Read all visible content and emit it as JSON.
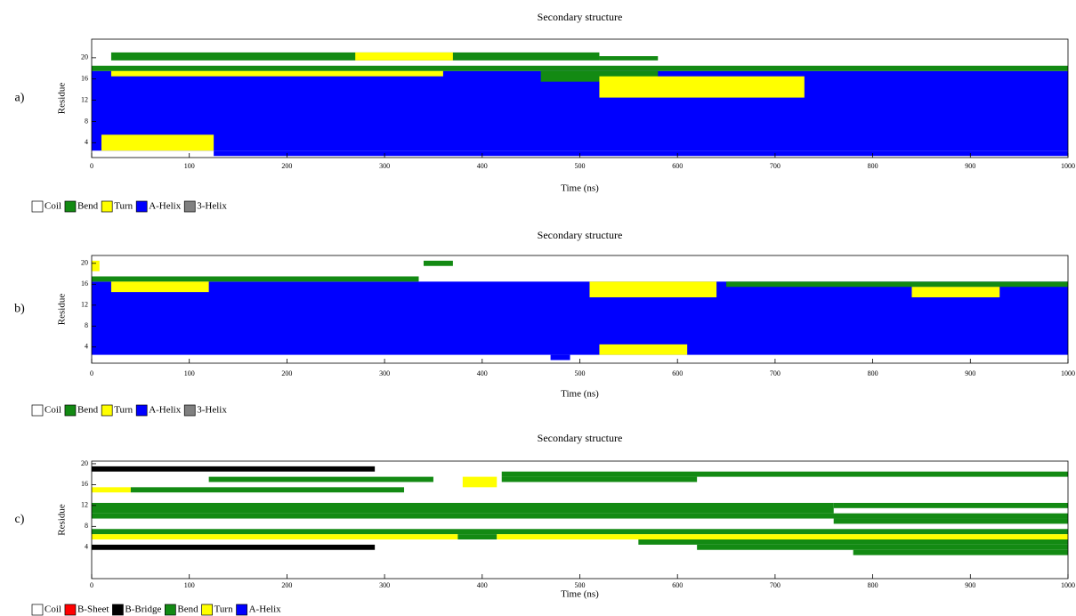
{
  "chart_data": [
    {
      "type": "dssp",
      "panel_label": "a)",
      "title": "Secondary structure",
      "x_label": "Time (ns)",
      "y_label": "Residue",
      "xlim": [
        0,
        1000
      ],
      "xticks": [
        0,
        100,
        200,
        300,
        400,
        500,
        600,
        700,
        800,
        900,
        1000
      ],
      "ylim": [
        1.2,
        23.5
      ],
      "yticks": [
        4,
        8,
        12,
        16,
        20
      ],
      "legend": [
        {
          "name": "Coil",
          "color": "#ffffff"
        },
        {
          "name": "Bend",
          "color": "#138a13"
        },
        {
          "name": "Turn",
          "color": "#ffff00"
        },
        {
          "name": "A-Helix",
          "color": "#0000ff"
        },
        {
          "name": "3-Helix",
          "color": "#808080"
        }
      ],
      "segments": [
        {
          "state": "A-Helix",
          "t": [
            0,
            1000
          ],
          "residues": [
            2.5,
            17.5
          ]
        },
        {
          "state": "A-Helix",
          "t": [
            125,
            1000
          ],
          "residues": [
            1.5,
            2.5
          ]
        },
        {
          "state": "Turn",
          "t": [
            10,
            125
          ],
          "residues": [
            2.5,
            5.5
          ]
        },
        {
          "state": "Bend",
          "t": [
            0,
            1000
          ],
          "residues": [
            17.5,
            18.5
          ]
        },
        {
          "state": "Turn",
          "t": [
            20,
            360
          ],
          "residues": [
            16.5,
            17.5
          ]
        },
        {
          "state": "Bend",
          "t": [
            460,
            580
          ],
          "residues": [
            15.5,
            17.5
          ]
        },
        {
          "state": "Turn",
          "t": [
            520,
            730
          ],
          "residues": [
            12.5,
            16.5
          ]
        },
        {
          "state": "Bend",
          "t": [
            20,
            520
          ],
          "residues": [
            19.5,
            21
          ]
        },
        {
          "state": "Turn",
          "t": [
            270,
            370
          ],
          "residues": [
            19.5,
            21
          ]
        },
        {
          "state": "Bend",
          "t": [
            520,
            580
          ],
          "residues": [
            19.5,
            20.3
          ]
        }
      ]
    },
    {
      "type": "dssp",
      "panel_label": "b)",
      "title": "Secondary structure",
      "x_label": "Time (ns)",
      "y_label": "Residue",
      "xlim": [
        0,
        1000
      ],
      "xticks": [
        0,
        100,
        200,
        300,
        400,
        500,
        600,
        700,
        800,
        900,
        1000
      ],
      "ylim": [
        0.9,
        21.5
      ],
      "yticks": [
        4,
        8,
        12,
        16,
        20
      ],
      "legend": [
        {
          "name": "Coil",
          "color": "#ffffff"
        },
        {
          "name": "Bend",
          "color": "#138a13"
        },
        {
          "name": "Turn",
          "color": "#ffff00"
        },
        {
          "name": "A-Helix",
          "color": "#0000ff"
        },
        {
          "name": "3-Helix",
          "color": "#808080"
        }
      ],
      "segments": [
        {
          "state": "A-Helix",
          "t": [
            0,
            1000
          ],
          "residues": [
            2.5,
            16.5
          ]
        },
        {
          "state": "Bend",
          "t": [
            0,
            335
          ],
          "residues": [
            16.5,
            17.5
          ]
        },
        {
          "state": "Bend",
          "t": [
            650,
            1000
          ],
          "residues": [
            15.5,
            16.5
          ]
        },
        {
          "state": "Turn",
          "t": [
            20,
            120
          ],
          "residues": [
            14.5,
            16.5
          ]
        },
        {
          "state": "Turn",
          "t": [
            510,
            640
          ],
          "residues": [
            13.5,
            16.5
          ]
        },
        {
          "state": "Turn",
          "t": [
            840,
            930
          ],
          "residues": [
            13.5,
            15.5
          ]
        },
        {
          "state": "Turn",
          "t": [
            520,
            610
          ],
          "residues": [
            2.5,
            4.5
          ]
        },
        {
          "state": "Turn",
          "t": [
            0,
            8
          ],
          "residues": [
            18.5,
            20.5
          ]
        },
        {
          "state": "Bend",
          "t": [
            340,
            370
          ],
          "residues": [
            19.5,
            20.5
          ]
        },
        {
          "state": "A-Helix",
          "t": [
            470,
            490
          ],
          "residues": [
            1.5,
            2.5
          ]
        }
      ]
    },
    {
      "type": "dssp",
      "panel_label": "c)",
      "title": "Secondary structure",
      "x_label": "Time (ns)",
      "y_label": "Residue",
      "xlim": [
        0,
        1000
      ],
      "xticks": [
        0,
        100,
        200,
        300,
        400,
        500,
        600,
        700,
        800,
        900,
        1000
      ],
      "ylim": [
        -2,
        20.5
      ],
      "yticks": [
        4,
        8,
        12,
        16,
        20
      ],
      "legend": [
        {
          "name": "Coil",
          "color": "#ffffff"
        },
        {
          "name": "B-Sheet",
          "color": "#ff0000"
        },
        {
          "name": "B-Bridge",
          "color": "#000000"
        },
        {
          "name": "Bend",
          "color": "#138a13"
        },
        {
          "name": "Turn",
          "color": "#ffff00"
        },
        {
          "name": "A-Helix",
          "color": "#0000ff"
        }
      ],
      "segments": [
        {
          "state": "B-Bridge",
          "t": [
            0,
            290
          ],
          "residues": [
            18.5,
            19.5
          ]
        },
        {
          "state": "Bend",
          "t": [
            420,
            1000
          ],
          "residues": [
            17.5,
            18.5
          ]
        },
        {
          "state": "Bend",
          "t": [
            120,
            350
          ],
          "residues": [
            16.5,
            17.5
          ]
        },
        {
          "state": "Turn",
          "t": [
            380,
            415
          ],
          "residues": [
            15.5,
            17.5
          ]
        },
        {
          "state": "Bend",
          "t": [
            420,
            620
          ],
          "residues": [
            16.5,
            17.5
          ]
        },
        {
          "state": "Turn",
          "t": [
            0,
            40
          ],
          "residues": [
            14.5,
            15.5
          ]
        },
        {
          "state": "Bend",
          "t": [
            40,
            320
          ],
          "residues": [
            14.5,
            15.5
          ]
        },
        {
          "state": "Bend",
          "t": [
            0,
            760
          ],
          "residues": [
            10.5,
            12.5
          ]
        },
        {
          "state": "Bend",
          "t": [
            760,
            1000
          ],
          "residues": [
            11.5,
            12.5
          ]
        },
        {
          "state": "Bend",
          "t": [
            0,
            1000
          ],
          "residues": [
            9.5,
            10.5
          ]
        },
        {
          "state": "Bend",
          "t": [
            760,
            1000
          ],
          "residues": [
            8.5,
            9.5
          ]
        },
        {
          "state": "Bend",
          "t": [
            0,
            1000
          ],
          "residues": [
            6.5,
            7.5
          ]
        },
        {
          "state": "Turn",
          "t": [
            0,
            375
          ],
          "residues": [
            5.5,
            6.5
          ]
        },
        {
          "state": "Bend",
          "t": [
            375,
            415
          ],
          "residues": [
            5.5,
            6.5
          ]
        },
        {
          "state": "Turn",
          "t": [
            415,
            1000
          ],
          "residues": [
            5.5,
            6.5
          ]
        },
        {
          "state": "Bend",
          "t": [
            560,
            1000
          ],
          "residues": [
            4.5,
            5.5
          ]
        },
        {
          "state": "B-Bridge",
          "t": [
            0,
            290
          ],
          "residues": [
            3.5,
            4.5
          ]
        },
        {
          "state": "Bend",
          "t": [
            620,
            1000
          ],
          "residues": [
            3.5,
            4.5
          ]
        },
        {
          "state": "Bend",
          "t": [
            780,
            1000
          ],
          "residues": [
            2.5,
            3.5
          ]
        }
      ]
    }
  ]
}
